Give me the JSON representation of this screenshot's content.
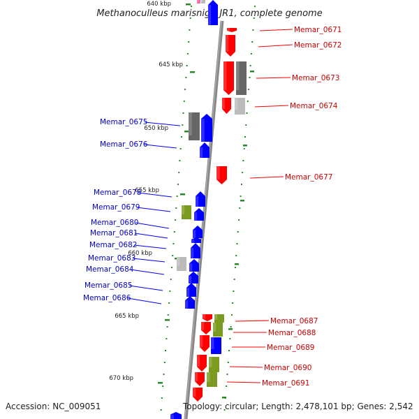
{
  "title": "Methanoculleus marisnigri JR1, complete genome",
  "footer": {
    "accession": "Accession: NC_009051",
    "topology": "Topology: circular; Length: 2,478,101 bp; Genes: 2,542"
  },
  "ticks": [
    "640 kbp",
    "645 kbp",
    "650 kbp",
    "655 kbp",
    "660 kbp",
    "665 kbp",
    "670 kbp"
  ],
  "colors": {
    "forward": "#ff0000",
    "reverse": "#0000ff",
    "gray": "#666666",
    "lightgray": "#bbbbbb",
    "olive": "#7a9a20",
    "backbone": "#888888",
    "tick": "#2a8a2a",
    "label_forward": "#cc0000",
    "label_reverse": "#0000cc"
  },
  "forward_labels": [
    "Memar_0671",
    "Memar_0672",
    "Memar_0673",
    "Memar_0674",
    "Memar_0677",
    "Memar_0687",
    "Memar_0688",
    "Memar_0689",
    "Memar_0690",
    "Memar_0691"
  ],
  "reverse_labels": [
    "Memar_0675",
    "Memar_0676",
    "Memar_0678",
    "Memar_0679",
    "Memar_0680",
    "Memar_0681",
    "Memar_0682",
    "Memar_0683",
    "Memar_0684",
    "Memar_0685",
    "Memar_0686"
  ]
}
